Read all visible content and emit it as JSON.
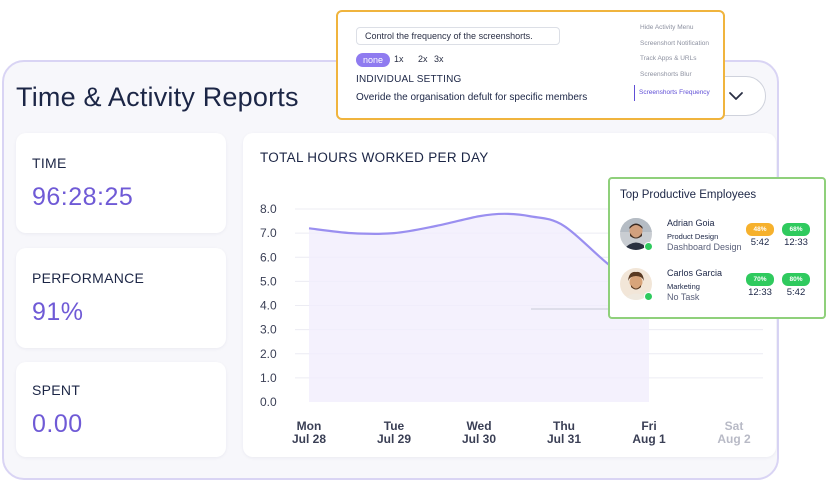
{
  "header": {
    "title": "Time & Activity Reports"
  },
  "stats": [
    {
      "label": "TIME",
      "value": "96:28:25"
    },
    {
      "label": "PERFORMANCE",
      "value": "91%"
    },
    {
      "label": "SPENT",
      "value": "0.00"
    }
  ],
  "chart_data": {
    "type": "line",
    "title": "TOTAL HOURS WORKED PER DAY",
    "categories": [
      {
        "day": "Mon",
        "date": "Jul 28"
      },
      {
        "day": "Tue",
        "date": "Jul 29"
      },
      {
        "day": "Wed",
        "date": "Jul 30"
      },
      {
        "day": "Thu",
        "date": "Jul 31"
      },
      {
        "day": "Fri",
        "date": "Aug 1"
      },
      {
        "day": "Sat",
        "date": "Aug 2"
      }
    ],
    "yticks": [
      "0.0",
      "1.0",
      "2.0",
      "3.0",
      "4.0",
      "5.0",
      "6.0",
      "7.0",
      "8.0"
    ],
    "series": [
      {
        "name": "Hours",
        "x": [
          0,
          0.5,
          1,
          1.5,
          2,
          2.3,
          2.6,
          3,
          3.6,
          4
        ],
        "values": [
          7.2,
          7.0,
          7.0,
          7.3,
          7.7,
          7.8,
          7.7,
          7.3,
          5.5,
          5.0
        ]
      }
    ],
    "ylim": [
      0,
      8.0
    ],
    "colors": {
      "line": "#9a8ff0",
      "fill": "#f1eefc",
      "grid": "#ececf3",
      "future": "#b8bac6"
    }
  },
  "settings_popup": {
    "input_value": "Control the frequency of the screenshorts.",
    "frequencies": [
      "none",
      "1x",
      "2x",
      "3x"
    ],
    "heading": "INDIVIDUAL SETTING",
    "description": "Overide the organisation defult for specific members",
    "menu": [
      "Hide Activity Menu",
      "Screenshort Notification",
      "Track Apps & URLs",
      "Screenshorts Blur",
      "Screenshorts Frequency"
    ]
  },
  "employees_popup": {
    "title": "Top Productive Employees",
    "employees": [
      {
        "name": "Adrian Goia",
        "department": "Product Design",
        "task": "Dashboard Design",
        "badge1": "48%",
        "badge1_color": "#f6b12d",
        "badge2": "68%",
        "badge2_color": "#2fca5e",
        "time1": "5:42",
        "time2": "12:33"
      },
      {
        "name": "Carlos Garcia",
        "department": "Marketing",
        "task": "No Task",
        "badge1": "70%",
        "badge1_color": "#2fca5e",
        "badge2": "80%",
        "badge2_color": "#2fca5e",
        "time1": "12:33",
        "time2": "5:42"
      }
    ]
  }
}
